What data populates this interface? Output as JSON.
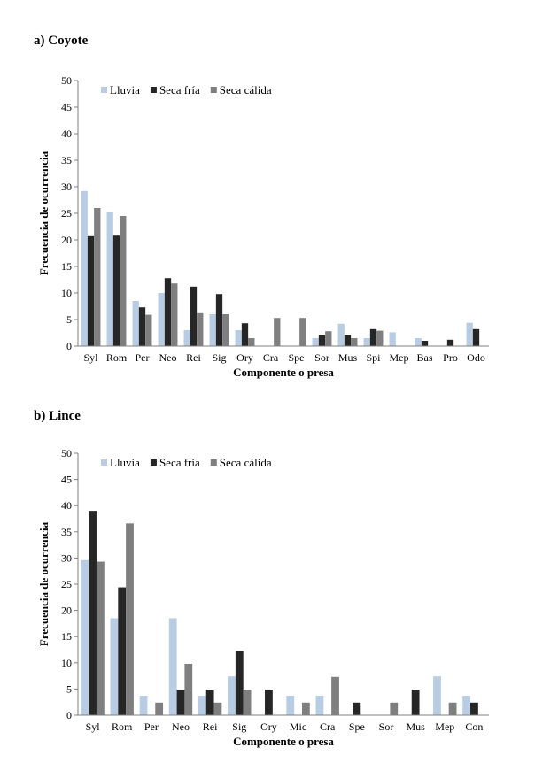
{
  "colors": {
    "Lluvia": "#b8cce4",
    "Seca fría": "#262626",
    "Seca cálida": "#7f7f7f"
  },
  "chart_data": [
    {
      "panel": "a) Coyote",
      "type": "bar",
      "ylabel": "Frecuencia de ocurrencia",
      "xlabel": "Componente o presa",
      "ylim": [
        0,
        50
      ],
      "yticks": [
        0,
        5,
        10,
        15,
        20,
        25,
        30,
        35,
        40,
        45,
        50
      ],
      "legend_position": "top-left",
      "categories": [
        "Syl",
        "Rom",
        "Per",
        "Neo",
        "Rei",
        "Sig",
        "Ory",
        "Cra",
        "Spe",
        "Sor",
        "Mus",
        "Spi",
        "Mep",
        "Bas",
        "Pro",
        "Odo"
      ],
      "series": [
        {
          "name": "Lluvia",
          "values": [
            29.2,
            25.2,
            8.5,
            10.0,
            3.0,
            6.0,
            3.0,
            0,
            0,
            1.5,
            4.2,
            1.5,
            2.6,
            1.5,
            0,
            4.4
          ]
        },
        {
          "name": "Seca fría",
          "values": [
            20.7,
            20.8,
            7.3,
            12.8,
            11.2,
            9.8,
            4.3,
            0,
            0,
            2.1,
            2.1,
            3.2,
            0,
            1.0,
            1.2,
            3.2
          ]
        },
        {
          "name": "Seca cálida",
          "values": [
            26.0,
            24.5,
            5.9,
            11.8,
            6.2,
            6.0,
            1.5,
            5.3,
            5.3,
            2.8,
            1.5,
            2.9,
            0,
            0,
            0,
            0
          ]
        }
      ]
    },
    {
      "panel": "b) Lince",
      "type": "bar",
      "ylabel": "Frecuencia de ocurrencia",
      "xlabel": "Componente o presa",
      "ylim": [
        0,
        50
      ],
      "yticks": [
        0,
        5,
        10,
        15,
        20,
        25,
        30,
        35,
        40,
        45,
        50
      ],
      "legend_position": "top-left",
      "categories": [
        "Syl",
        "Rom",
        "Per",
        "Neo",
        "Rei",
        "Sig",
        "Ory",
        "Mic",
        "Cra",
        "Spe",
        "Sor",
        "Mus",
        "Mep",
        "Con"
      ],
      "series": [
        {
          "name": "Lluvia",
          "values": [
            29.6,
            18.5,
            3.7,
            18.5,
            3.7,
            7.4,
            0,
            3.7,
            3.7,
            0,
            0,
            0,
            7.4,
            3.7
          ]
        },
        {
          "name": "Seca fría",
          "values": [
            39.0,
            24.4,
            0,
            4.9,
            4.9,
            12.2,
            4.9,
            0,
            0,
            2.4,
            0,
            4.9,
            0,
            2.4
          ]
        },
        {
          "name": "Seca cálida",
          "values": [
            29.3,
            36.6,
            2.4,
            9.8,
            2.4,
            4.9,
            0,
            2.4,
            7.3,
            0,
            2.4,
            0,
            2.4,
            0
          ]
        }
      ]
    }
  ]
}
